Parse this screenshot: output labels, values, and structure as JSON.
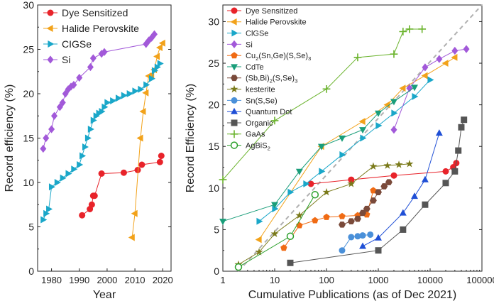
{
  "chart_data": [
    {
      "type": "scatter",
      "xlabel": "Year",
      "ylabel": "Record efficiency (%)",
      "xlim": [
        1975,
        2023
      ],
      "ylim": [
        0,
        30
      ],
      "xticks": [
        1980,
        1990,
        2000,
        2010,
        2020
      ],
      "yticks": [
        0,
        5,
        10,
        15,
        20,
        25,
        30
      ],
      "grid": false,
      "legend_position": "top-left",
      "series": [
        {
          "name": "Dye Sensitized",
          "color": "#e8232a",
          "marker": "circle",
          "x": [
            1991,
            1993.8,
            1994.5,
            1995,
            1995.5,
            1998,
            2006,
            2011,
            2012.5,
            2019,
            2019.5
          ],
          "y": [
            6.3,
            7,
            7.5,
            8.5,
            8.5,
            11,
            11.1,
            11.4,
            12,
            12.3,
            13
          ]
        },
        {
          "name": "Halide Perovskite",
          "color": "#f2a21a",
          "marker": "triangle-left",
          "x": [
            2009,
            2010,
            2012,
            2013,
            2014,
            2015,
            2016,
            2017,
            2018,
            2019,
            2020
          ],
          "y": [
            3.8,
            6.5,
            15,
            18,
            20.1,
            22,
            22.1,
            22.7,
            24.2,
            25.2,
            25.7
          ]
        },
        {
          "name": "CIGSe",
          "color": "#1aa7c9",
          "marker": "triangle-right",
          "x": [
            1977,
            1978,
            1979,
            1980,
            1982,
            1984,
            1986,
            1988,
            1990,
            1991,
            1992,
            1993,
            1994,
            1995,
            1996,
            1997,
            1998,
            1999,
            2000,
            2002,
            2004,
            2006,
            2008,
            2010,
            2012,
            2014,
            2016,
            2017,
            2018,
            2019
          ],
          "y": [
            5.8,
            6.5,
            7,
            9.5,
            10,
            10.5,
            11,
            11.5,
            12,
            13,
            14,
            15,
            16,
            17,
            17.5,
            17.8,
            18,
            18.5,
            19,
            19.2,
            19.5,
            19.8,
            20,
            20.3,
            20.5,
            21,
            21.7,
            22.6,
            23,
            23.4
          ]
        },
        {
          "name": "Si",
          "color": "#a259d9",
          "marker": "diamond",
          "x": [
            1977,
            1978,
            1980,
            1981,
            1983,
            1984,
            1985,
            1986,
            1987,
            1988,
            1990,
            1994,
            1995,
            1998,
            1999,
            2014,
            2015,
            2016,
            2017
          ],
          "y": [
            13.8,
            15,
            16,
            17.5,
            18.5,
            19,
            20,
            20.5,
            20.8,
            21,
            21.8,
            23,
            24,
            24.5,
            24.7,
            25.6,
            26,
            26.3,
            26.7
          ]
        }
      ]
    },
    {
      "type": "scatter",
      "xlabel": "Cumulative Publications (as of Dec 2021)",
      "ylabel": "Record Efficiency (%)",
      "x_scale": "log",
      "xlim": [
        1,
        100000
      ],
      "ylim": [
        0,
        32
      ],
      "xtick_labels": [
        "1",
        "10",
        "100",
        "1000",
        "10000",
        "100000"
      ],
      "yticks": [
        0,
        5,
        10,
        15,
        20,
        25,
        30
      ],
      "grid": false,
      "legend_position": "top-left",
      "reference_line": {
        "style": "dashed",
        "color": "#b0b0b0",
        "x": [
          2,
          100000
        ],
        "y": [
          0,
          33
        ]
      },
      "series": [
        {
          "name": "Dye Sensitized",
          "color": "#e8232a",
          "marker": "circle",
          "x": [
            50,
            300,
            2000,
            20000,
            28000,
            32000
          ],
          "y": [
            10.5,
            11,
            11.5,
            12,
            12.5,
            13
          ]
        },
        {
          "name": "Halide Perovskite",
          "color": "#f2a21a",
          "marker": "triangle-left",
          "x": [
            5,
            80,
            500,
            1500,
            3000,
            8000,
            20000,
            30000
          ],
          "y": [
            3.8,
            15,
            18,
            20,
            22,
            23.5,
            25,
            25.7
          ]
        },
        {
          "name": "ClGSe",
          "color": "#1aa7c9",
          "marker": "triangle-right",
          "x": [
            5,
            10,
            20,
            40,
            80,
            200,
            500,
            1000,
            2000,
            5000,
            10000
          ],
          "y": [
            6,
            7.5,
            9.5,
            10.5,
            12,
            14,
            16,
            17.5,
            19,
            21,
            23
          ]
        },
        {
          "name": "Si",
          "color": "#a259d9",
          "marker": "diamond",
          "x": [
            2000,
            4000,
            8000,
            15000,
            30000,
            50000
          ],
          "y": [
            17,
            22,
            24.5,
            25.5,
            26.5,
            26.7
          ]
        },
        {
          "name": "Cu2(Sn,Ge)(S,Se)3",
          "label_base": "Cu",
          "label_sub1": "2",
          "label_mid": "(Sn,Ge)(S,Se)",
          "label_sub2": "3",
          "color": "#f06b14",
          "marker": "pentagon",
          "x": [
            15,
            30,
            60,
            100,
            200,
            400,
            600,
            800
          ],
          "y": [
            2.8,
            5.5,
            6.1,
            6.5,
            6.6,
            6.7,
            6.8,
            9.7
          ]
        },
        {
          "name": "CdTe",
          "color": "#1a9e7a",
          "marker": "triangle-down",
          "x": [
            1,
            10,
            30,
            80,
            200,
            500,
            1000,
            2000,
            5000
          ],
          "y": [
            6,
            8,
            12,
            15,
            16,
            17,
            19,
            20.4,
            22.1
          ]
        },
        {
          "name": "(Sb,Bi)2(S,Se)3",
          "label_base": "(Sb,Bi)",
          "label_sub1": "2",
          "label_mid": "(S,Se)",
          "label_sub2": "3",
          "color": "#7a4a3a",
          "marker": "hexagon",
          "x": [
            200,
            300,
            400,
            500,
            600,
            800,
            1000,
            1300,
            1600
          ],
          "y": [
            5.6,
            6,
            6.3,
            7,
            7.5,
            8.5,
            9.5,
            10.2,
            10.7
          ]
        },
        {
          "name": "kesterite",
          "color": "#7a7a1a",
          "marker": "star",
          "x": [
            2,
            5,
            10,
            30,
            100,
            300,
            800,
            1500,
            2500,
            4000
          ],
          "y": [
            0.8,
            2.3,
            4.5,
            6.7,
            9.5,
            10.5,
            12.6,
            12.7,
            12.8,
            12.9
          ]
        },
        {
          "name": "Sn(S,Se)",
          "color": "#4a90d9",
          "marker": "circle",
          "x": [
            200,
            300,
            400,
            500,
            700
          ],
          "y": [
            2.5,
            4.1,
            4.2,
            4.3,
            4.4
          ]
        },
        {
          "name": "Quantum Dot",
          "color": "#1f4fd6",
          "marker": "triangle-up",
          "x": [
            500,
            1000,
            3000,
            5000,
            8000,
            15000
          ],
          "y": [
            3,
            4,
            7,
            9,
            11,
            16.6
          ]
        },
        {
          "name": "Organic",
          "color": "#555555",
          "marker": "square",
          "x": [
            20,
            1000,
            3000,
            8000,
            20000,
            30000,
            35000,
            40000,
            45000
          ],
          "y": [
            1,
            2.5,
            5,
            8,
            10.6,
            12,
            14.5,
            17.3,
            18.2
          ]
        },
        {
          "name": "GaAs",
          "color": "#6ab32c",
          "marker": "plus",
          "x": [
            1,
            10,
            100,
            400,
            2000,
            3000,
            4000,
            7000
          ],
          "y": [
            11,
            18.1,
            21.9,
            25.7,
            26.1,
            28.8,
            29.1,
            29.1
          ]
        },
        {
          "name": "AgBiS2",
          "label_base": "AgBiS",
          "label_sub1": "2",
          "color": "#2ca02c",
          "marker": "circle-open",
          "x": [
            2,
            20,
            60
          ],
          "y": [
            0.5,
            4.2,
            9.2
          ]
        }
      ]
    }
  ]
}
